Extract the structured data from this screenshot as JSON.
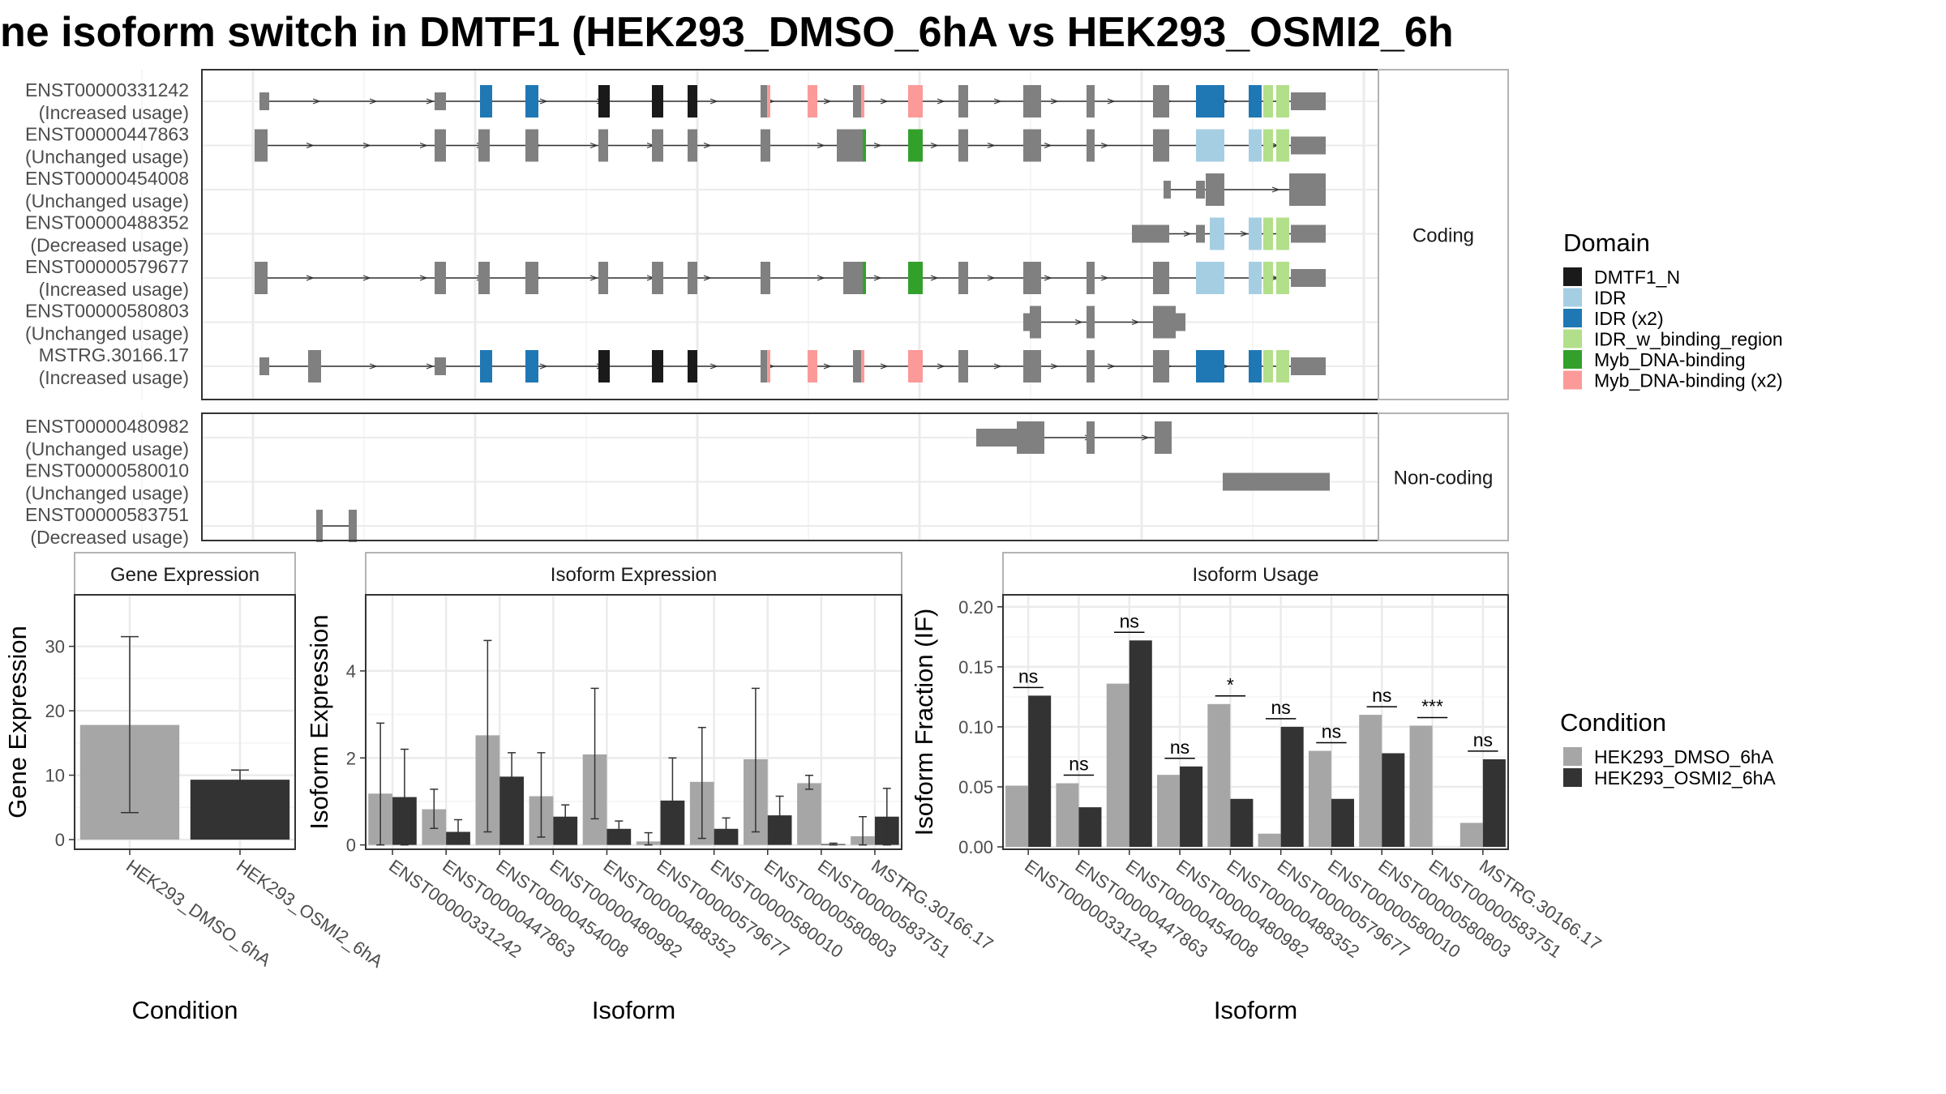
{
  "chart_data": {
    "title": "ne isoform switch in DMTF1 (HEK293_DMSO_6hA vs HEK293_OSMI2_6h",
    "colors": {
      "DMTF1_N": "#1a1a1a",
      "IDR": "#a6cee3",
      "IDR (x2)": "#1f78b4",
      "IDR_w_binding_region": "#b2df8a",
      "Myb_DNA-binding": "#33a02c",
      "Myb_DNA-binding (x2)": "#fb9a99",
      "exon": "#808080",
      "DMSO": "#a6a6a6",
      "OSMI2": "#333333"
    },
    "structure": {
      "facets": [
        {
          "label": "Coding",
          "type": "structure",
          "isoforms": [
            {
              "id": "ENST00000331242",
              "usage": "(Increased usage)"
            },
            {
              "id": "ENST00000447863",
              "usage": "(Unchanged usage)"
            },
            {
              "id": "ENST00000454008",
              "usage": "(Unchanged usage)"
            },
            {
              "id": "ENST00000488352",
              "usage": "(Decreased usage)"
            },
            {
              "id": "ENST00000579677",
              "usage": "(Increased usage)"
            },
            {
              "id": "ENST00000580803",
              "usage": "(Unchanged usage)"
            },
            {
              "id": "MSTRG.30166.17",
              "usage": "(Increased usage)"
            }
          ]
        },
        {
          "label": "Non-coding",
          "type": "structure",
          "isoforms": [
            {
              "id": "ENST00000480982",
              "usage": "(Unchanged usage)"
            },
            {
              "id": "ENST00000580010",
              "usage": "(Unchanged usage)"
            },
            {
              "id": "ENST00000583751",
              "usage": "(Decreased usage)"
            }
          ]
        }
      ],
      "domain_legend": {
        "title": "Domain",
        "items": [
          "DMTF1_N",
          "IDR",
          "IDR (x2)",
          "IDR_w_binding_region",
          "Myb_DNA-binding",
          "Myb_DNA-binding (x2)"
        ]
      }
    },
    "gene_expression": {
      "type": "bar",
      "strip": "Gene Expression",
      "xlabel": "Condition",
      "ylabel": "Gene Expression",
      "ylim": [
        -1.5,
        38
      ],
      "yticks": [
        0,
        10,
        20,
        30
      ],
      "categories": [
        "HEK293_DMSO_6hA",
        "HEK293_OSMI2_6hA"
      ],
      "values": [
        17.8,
        9.3
      ],
      "err_low": [
        4.2,
        7.9
      ],
      "err_high": [
        31.5,
        10.8
      ]
    },
    "isoform_expression": {
      "type": "bar",
      "strip": "Isoform Expression",
      "xlabel": "Isoform",
      "ylabel": "Isoform Expression",
      "ylim": [
        -0.1,
        5.75
      ],
      "yticks": [
        0,
        2,
        4
      ],
      "categories": [
        "ENST00000331242",
        "ENST00000447863",
        "ENST00000454008",
        "ENST00000480982",
        "ENST00000488352",
        "ENST00000579677",
        "ENST00000580010",
        "ENST00000580803",
        "ENST00000583751",
        "MSTRG.30166.17"
      ],
      "series": [
        {
          "name": "HEK293_DMSO_6hA",
          "values": [
            1.18,
            0.82,
            2.52,
            1.12,
            2.08,
            0.08,
            1.45,
            1.97,
            1.42,
            0.2
          ],
          "err_low": [
            0,
            0.38,
            0.3,
            0.18,
            0.6,
            0.0,
            0.15,
            0.3,
            1.28,
            0.0
          ],
          "err_high": [
            2.8,
            1.28,
            4.7,
            2.12,
            3.6,
            0.28,
            2.7,
            3.6,
            1.6,
            0.65
          ]
        },
        {
          "name": "HEK293_OSMI2_6hA",
          "values": [
            1.1,
            0.3,
            1.57,
            0.65,
            0.37,
            1.02,
            0.37,
            0.68,
            0.02,
            0.65
          ],
          "err_low": [
            0,
            0.02,
            1.0,
            0.38,
            0.22,
            0.04,
            0.15,
            0.25,
            0.0,
            0.0
          ],
          "err_high": [
            2.2,
            0.58,
            2.12,
            0.92,
            0.55,
            2.0,
            0.62,
            1.12,
            0.04,
            1.3
          ]
        }
      ]
    },
    "isoform_usage": {
      "type": "bar",
      "strip": "Isoform Usage",
      "xlabel": "Isoform",
      "ylabel": "Isoform Fraction (IF)",
      "ylim": [
        -0.002,
        0.21
      ],
      "yticks": [
        0.0,
        0.05,
        0.1,
        0.15,
        0.2
      ],
      "ytick_labels": [
        "0.00",
        "0.05",
        "0.10",
        "0.15",
        "0.20"
      ],
      "categories": [
        "ENST00000331242",
        "ENST00000447863",
        "ENST00000454008",
        "ENST00000480982",
        "ENST00000488352",
        "ENST00000579677",
        "ENST00000580010",
        "ENST00000580803",
        "ENST00000583751",
        "MSTRG.30166.17"
      ],
      "series": [
        {
          "name": "HEK293_DMSO_6hA",
          "values": [
            0.051,
            0.053,
            0.136,
            0.06,
            0.119,
            0.011,
            0.08,
            0.11,
            0.101,
            0.02
          ]
        },
        {
          "name": "HEK293_OSMI2_6hA",
          "values": [
            0.126,
            0.033,
            0.172,
            0.067,
            0.04,
            0.1,
            0.04,
            0.078,
            0.0,
            0.073
          ]
        }
      ],
      "significance": [
        "ns",
        "ns",
        "ns",
        "ns",
        "*",
        "ns",
        "ns",
        "ns",
        "***",
        "ns"
      ]
    },
    "condition_legend": {
      "title": "Condition",
      "items": [
        "HEK293_DMSO_6hA",
        "HEK293_OSMI2_6hA"
      ]
    }
  }
}
